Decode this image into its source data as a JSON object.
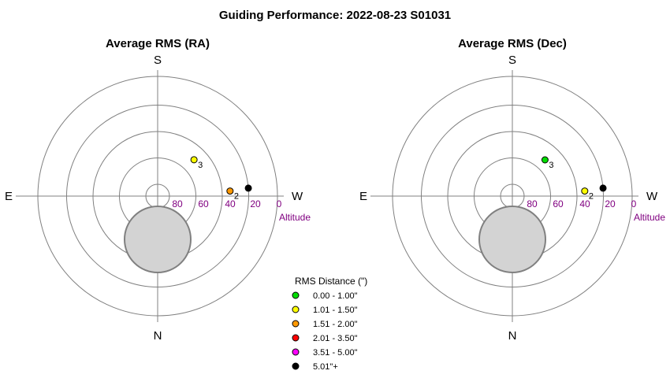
{
  "title": "Guiding Performance: 2022-08-23 S01031",
  "chart_data": [
    {
      "type": "scatter",
      "projection": "polar-sky",
      "title": "Average RMS (RA)",
      "compass": {
        "top": "S",
        "bottom": "N",
        "left": "E",
        "right": "W"
      },
      "radial_axis": {
        "label": "Altitude",
        "tick_labels": [
          "80",
          "60",
          "40",
          "20",
          "0"
        ],
        "range": [
          90,
          0
        ]
      },
      "zenith_obstruction": true,
      "points": [
        {
          "label": "3",
          "azimuth": 225,
          "altitude": 60,
          "color": "#ffff00"
        },
        {
          "label": "2",
          "azimuth": 266,
          "altitude": 44,
          "color": "#ff9900"
        },
        {
          "label": "",
          "azimuth": 265,
          "altitude": 30,
          "color": "#000000"
        }
      ]
    },
    {
      "type": "scatter",
      "projection": "polar-sky",
      "title": "Average RMS (Dec)",
      "compass": {
        "top": "S",
        "bottom": "N",
        "left": "E",
        "right": "W"
      },
      "radial_axis": {
        "label": "Altitude",
        "tick_labels": [
          "80",
          "60",
          "40",
          "20",
          "0"
        ],
        "range": [
          90,
          0
        ]
      },
      "zenith_obstruction": true,
      "points": [
        {
          "label": "3",
          "azimuth": 222,
          "altitude": 62,
          "color": "#00dd00"
        },
        {
          "label": "2",
          "azimuth": 266,
          "altitude": 44,
          "color": "#ffff00"
        },
        {
          "label": "",
          "azimuth": 265,
          "altitude": 30,
          "color": "#000000"
        }
      ]
    }
  ],
  "legend": {
    "title": "RMS Distance (\")",
    "entries": [
      {
        "label": "0.00 - 1.00\"",
        "color": "#00dd00"
      },
      {
        "label": "1.01 - 1.50\"",
        "color": "#ffff00"
      },
      {
        "label": "1.51 - 2.00\"",
        "color": "#ff9900"
      },
      {
        "label": "2.01 - 3.50\"",
        "color": "#ff0000"
      },
      {
        "label": "3.51 - 5.00\"",
        "color": "#ff00ff"
      },
      {
        "label": "5.01\"+",
        "color": "#000000"
      }
    ]
  }
}
